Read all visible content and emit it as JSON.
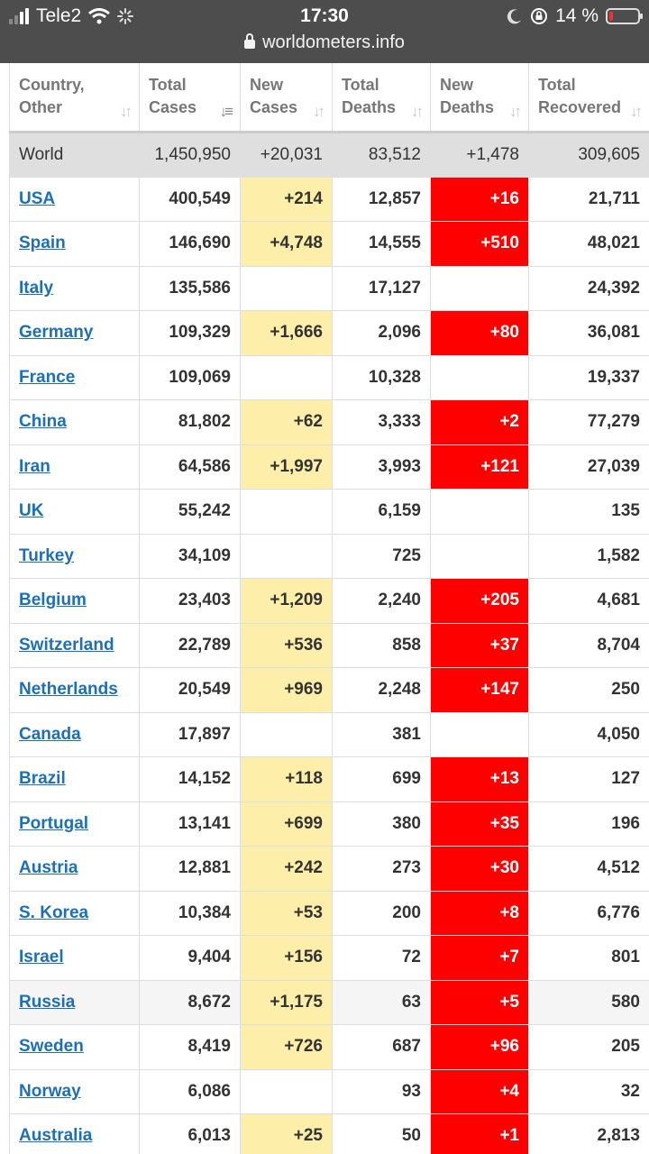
{
  "status_bar": {
    "carrier": "Tele2",
    "time": "17:30",
    "battery_percent": "14 %",
    "battery_level": 0.14
  },
  "browser": {
    "url": "worldometers.info"
  },
  "colors": {
    "new_cases_bg": "#fdeeaa",
    "new_deaths_bg": "#ff0000",
    "link": "#1d6fb8",
    "world_row_bg": "#dfdfdf"
  },
  "table": {
    "headers": [
      {
        "line1": "Country,",
        "line2": "Other"
      },
      {
        "line1": "Total",
        "line2": "Cases"
      },
      {
        "line1": "New",
        "line2": "Cases"
      },
      {
        "line1": "Total",
        "line2": "Deaths"
      },
      {
        "line1": "New",
        "line2": "Deaths"
      },
      {
        "line1": "Total",
        "line2": "Recovered"
      }
    ],
    "world": {
      "name": "World",
      "total_cases": "1,450,950",
      "new_cases": "+20,031",
      "total_deaths": "83,512",
      "new_deaths": "+1,478",
      "total_recovered": "309,605"
    },
    "rows": [
      {
        "name": "USA",
        "total_cases": "400,549",
        "new_cases": "+214",
        "total_deaths": "12,857",
        "new_deaths": "+16",
        "total_recovered": "21,711"
      },
      {
        "name": "Spain",
        "total_cases": "146,690",
        "new_cases": "+4,748",
        "total_deaths": "14,555",
        "new_deaths": "+510",
        "total_recovered": "48,021"
      },
      {
        "name": "Italy",
        "total_cases": "135,586",
        "new_cases": "",
        "total_deaths": "17,127",
        "new_deaths": "",
        "total_recovered": "24,392"
      },
      {
        "name": "Germany",
        "total_cases": "109,329",
        "new_cases": "+1,666",
        "total_deaths": "2,096",
        "new_deaths": "+80",
        "total_recovered": "36,081"
      },
      {
        "name": "France",
        "total_cases": "109,069",
        "new_cases": "",
        "total_deaths": "10,328",
        "new_deaths": "",
        "total_recovered": "19,337"
      },
      {
        "name": "China",
        "total_cases": "81,802",
        "new_cases": "+62",
        "total_deaths": "3,333",
        "new_deaths": "+2",
        "total_recovered": "77,279"
      },
      {
        "name": "Iran",
        "total_cases": "64,586",
        "new_cases": "+1,997",
        "total_deaths": "3,993",
        "new_deaths": "+121",
        "total_recovered": "27,039"
      },
      {
        "name": "UK",
        "total_cases": "55,242",
        "new_cases": "",
        "total_deaths": "6,159",
        "new_deaths": "",
        "total_recovered": "135"
      },
      {
        "name": "Turkey",
        "total_cases": "34,109",
        "new_cases": "",
        "total_deaths": "725",
        "new_deaths": "",
        "total_recovered": "1,582"
      },
      {
        "name": "Belgium",
        "total_cases": "23,403",
        "new_cases": "+1,209",
        "total_deaths": "2,240",
        "new_deaths": "+205",
        "total_recovered": "4,681"
      },
      {
        "name": "Switzerland",
        "total_cases": "22,789",
        "new_cases": "+536",
        "total_deaths": "858",
        "new_deaths": "+37",
        "total_recovered": "8,704"
      },
      {
        "name": "Netherlands",
        "total_cases": "20,549",
        "new_cases": "+969",
        "total_deaths": "2,248",
        "new_deaths": "+147",
        "total_recovered": "250"
      },
      {
        "name": "Canada",
        "total_cases": "17,897",
        "new_cases": "",
        "total_deaths": "381",
        "new_deaths": "",
        "total_recovered": "4,050"
      },
      {
        "name": "Brazil",
        "total_cases": "14,152",
        "new_cases": "+118",
        "total_deaths": "699",
        "new_deaths": "+13",
        "total_recovered": "127"
      },
      {
        "name": "Portugal",
        "total_cases": "13,141",
        "new_cases": "+699",
        "total_deaths": "380",
        "new_deaths": "+35",
        "total_recovered": "196"
      },
      {
        "name": "Austria",
        "total_cases": "12,881",
        "new_cases": "+242",
        "total_deaths": "273",
        "new_deaths": "+30",
        "total_recovered": "4,512"
      },
      {
        "name": "S. Korea",
        "total_cases": "10,384",
        "new_cases": "+53",
        "total_deaths": "200",
        "new_deaths": "+8",
        "total_recovered": "6,776"
      },
      {
        "name": "Israel",
        "total_cases": "9,404",
        "new_cases": "+156",
        "total_deaths": "72",
        "new_deaths": "+7",
        "total_recovered": "801"
      },
      {
        "name": "Russia",
        "total_cases": "8,672",
        "new_cases": "+1,175",
        "total_deaths": "63",
        "new_deaths": "+5",
        "total_recovered": "580",
        "highlighted": true
      },
      {
        "name": "Sweden",
        "total_cases": "8,419",
        "new_cases": "+726",
        "total_deaths": "687",
        "new_deaths": "+96",
        "total_recovered": "205"
      },
      {
        "name": "Norway",
        "total_cases": "6,086",
        "new_cases": "",
        "total_deaths": "93",
        "new_deaths": "+4",
        "total_recovered": "32"
      },
      {
        "name": "Australia",
        "total_cases": "6,013",
        "new_cases": "+25",
        "total_deaths": "50",
        "new_deaths": "+1",
        "total_recovered": "2,813"
      }
    ]
  }
}
